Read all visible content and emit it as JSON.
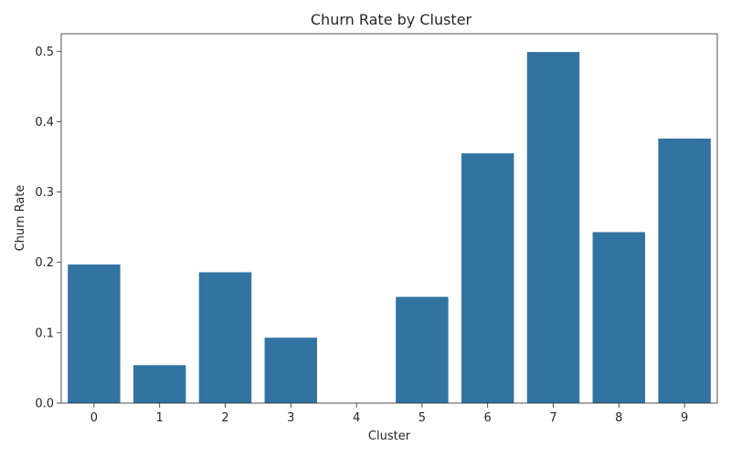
{
  "chart_data": {
    "type": "bar",
    "title": "Churn Rate by Cluster",
    "xlabel": "Cluster",
    "ylabel": "Churn Rate",
    "categories": [
      "0",
      "1",
      "2",
      "3",
      "4",
      "5",
      "6",
      "7",
      "8",
      "9"
    ],
    "values": [
      0.197,
      0.054,
      0.186,
      0.093,
      0.0,
      0.151,
      0.355,
      0.499,
      0.243,
      0.376
    ],
    "ylim": [
      0,
      0.525
    ],
    "yticks": [
      "0.0",
      "0.1",
      "0.2",
      "0.3",
      "0.4",
      "0.5"
    ],
    "grid": false,
    "bar_color": "#3274a1"
  }
}
